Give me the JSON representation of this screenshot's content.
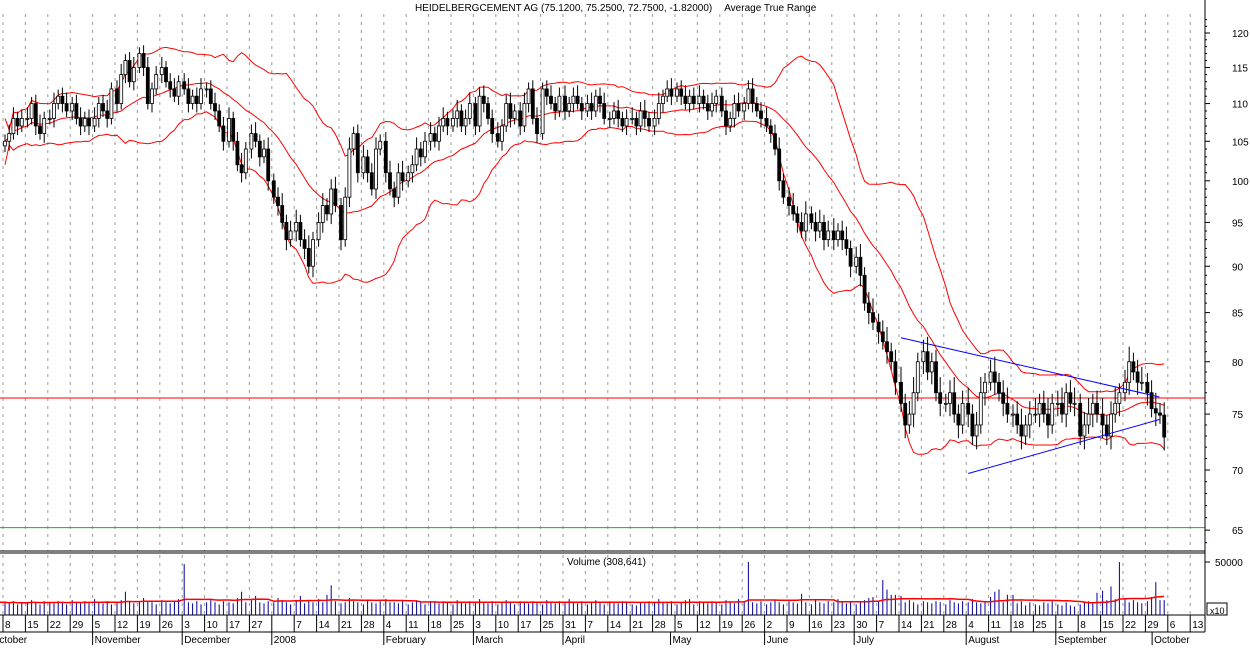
{
  "chart_data": {
    "type": "candlestick",
    "title": "HEIDELBERGCEMENT AG (75.1200, 75.2500, 72.7500, -1.82000)",
    "title_overlay": "Average True Range",
    "y_axis": {
      "scale": "log",
      "range": [
        63,
        123
      ],
      "ticks": [
        120,
        115,
        110,
        105,
        100,
        95,
        90,
        85,
        80,
        75,
        70,
        65
      ],
      "side": "right"
    },
    "grid": "vertical dashed at weekly ticks",
    "overlays": {
      "bollinger_bands": {
        "period": 20,
        "stddev": 2,
        "color": "#ff0000"
      },
      "horizontal_lines": [
        {
          "price": 76.5,
          "color": "#ff0000"
        },
        {
          "price": 65.2,
          "color": "#00c000"
        }
      ],
      "trendlines": [
        {
          "color": "#0000ff",
          "from": {
            "week": "Jul 14",
            "price": 82.4
          },
          "to": {
            "week": "Sep 29",
            "price": 76.6
          }
        },
        {
          "color": "#0000ff",
          "from": {
            "week": "Aug 4",
            "price": 69.7
          },
          "to": {
            "week": "Sep 29",
            "price": 74.5
          }
        }
      ]
    },
    "weekly_closes": [
      [
        105,
        106,
        108,
        107,
        108
      ],
      [
        108,
        110,
        107,
        106,
        108
      ],
      [
        108,
        110,
        111,
        110,
        109
      ],
      [
        110,
        108,
        107,
        108,
        107
      ],
      [
        108,
        110,
        109,
        108,
        112
      ],
      [
        110,
        114,
        116,
        113,
        115
      ],
      [
        117,
        115,
        110,
        112,
        114
      ],
      [
        115,
        113,
        112,
        111,
        113
      ],
      [
        112,
        110,
        111,
        110,
        112
      ],
      [
        112,
        110,
        109,
        107,
        105
      ],
      [
        108,
        105,
        102,
        101,
        104
      ],
      [
        106,
        105,
        103,
        104,
        100
      ],
      [
        98,
        97,
        95,
        93,
        94
      ],
      [
        95,
        93,
        92,
        90,
        93
      ],
      [
        95,
        97,
        96,
        99,
        97
      ],
      [
        93,
        98,
        104,
        106,
        101
      ],
      [
        103,
        101,
        99,
        104,
        105
      ],
      [
        101,
        99,
        98,
        101,
        100
      ],
      [
        101,
        102,
        104,
        103,
        105
      ],
      [
        106,
        105,
        107,
        108,
        107
      ],
      [
        108,
        109,
        107,
        108,
        110
      ],
      [
        107,
        111,
        110,
        108,
        106
      ],
      [
        105,
        107,
        110,
        108,
        109
      ],
      [
        107,
        110,
        112,
        108,
        106
      ],
      [
        112,
        111,
        110,
        109,
        111
      ],
      [
        109,
        110,
        111,
        110,
        109
      ],
      [
        110,
        109,
        111,
        110,
        108
      ],
      [
        108,
        109,
        108,
        107,
        108
      ],
      [
        108,
        107,
        109,
        108,
        107
      ],
      [
        108,
        110,
        111,
        112,
        111
      ],
      [
        112,
        111,
        110,
        111,
        110
      ],
      [
        111,
        110,
        109,
        110,
        111
      ],
      [
        109,
        107,
        108,
        110,
        109
      ],
      [
        110,
        112,
        110,
        109,
        108
      ],
      [
        107,
        106,
        104,
        100,
        98
      ],
      [
        97,
        96,
        95,
        94,
        96
      ],
      [
        95,
        94,
        95,
        93,
        94
      ],
      [
        93,
        94,
        93,
        92,
        90
      ],
      [
        91,
        89,
        86,
        85,
        84
      ],
      [
        83,
        82,
        81,
        80,
        78
      ],
      [
        76,
        74,
        75,
        77,
        80
      ],
      [
        81,
        79,
        80,
        77,
        76
      ],
      [
        76,
        77,
        75,
        74,
        76
      ],
      [
        75,
        73,
        74,
        77,
        78
      ],
      [
        79,
        78,
        77,
        76,
        75
      ],
      [
        75,
        74,
        73,
        74,
        75
      ],
      [
        75,
        76,
        75,
        74,
        76
      ],
      [
        76,
        75,
        77,
        76,
        76
      ],
      [
        73,
        74,
        75,
        76,
        75
      ],
      [
        74,
        73,
        75,
        76,
        77
      ],
      [
        78,
        80,
        79,
        78,
        78
      ],
      [
        77,
        75.5,
        75.1,
        74.9,
        72.9
      ]
    ],
    "volume": {
      "label": "Volume (308,641)",
      "scale_tick": "50000",
      "multiplier_label": "x10",
      "ma_color": "#ff0000",
      "bar_color": "#0000a0",
      "values_thousands": [
        12,
        11,
        13,
        10,
        12,
        11,
        14,
        12,
        10,
        13,
        12,
        11,
        13,
        12,
        10,
        14,
        12,
        11,
        13,
        12,
        15,
        12,
        11,
        13,
        10,
        12,
        14,
        22,
        13,
        11,
        12,
        16,
        13,
        12,
        10,
        14,
        12,
        11,
        13,
        15,
        48,
        12,
        11,
        13,
        10,
        12,
        14,
        12,
        10,
        13,
        12,
        11,
        16,
        22,
        12,
        14,
        18,
        12,
        11,
        13,
        12,
        16,
        13,
        12,
        10,
        14,
        18,
        11,
        13,
        12,
        15,
        12,
        19,
        28,
        13,
        11,
        12,
        16,
        13,
        12,
        10,
        14,
        12,
        11,
        13,
        15,
        12,
        12,
        11,
        13,
        10,
        12,
        14,
        12,
        10,
        13,
        12,
        11,
        13,
        12,
        10,
        14,
        12,
        11,
        13,
        12,
        15,
        12,
        11,
        13,
        10,
        12,
        14,
        12,
        10,
        13,
        12,
        11,
        13,
        12,
        10,
        14,
        12,
        11,
        13,
        12,
        15,
        12,
        11,
        13,
        10,
        12,
        14,
        12,
        10,
        13,
        12,
        11,
        13,
        12,
        10,
        9,
        12,
        11,
        13,
        12,
        15,
        12,
        11,
        13,
        10,
        12,
        14,
        15,
        10,
        13,
        12,
        11,
        13,
        12,
        10,
        14,
        12,
        11,
        15,
        13,
        50,
        12,
        11,
        13,
        10,
        12,
        14,
        12,
        10,
        13,
        12,
        11,
        20,
        12,
        10,
        14,
        12,
        11,
        13,
        12,
        15,
        12,
        11,
        13,
        10,
        12,
        14,
        16,
        17,
        13,
        33,
        24,
        19,
        19,
        18,
        12,
        14,
        12,
        10,
        13,
        12,
        11,
        13,
        12,
        10,
        14,
        12,
        11,
        13,
        12,
        15,
        12,
        11,
        13,
        17,
        22,
        24,
        12,
        19,
        19,
        11,
        13,
        9,
        12,
        10,
        9,
        12,
        11,
        13,
        10,
        9,
        12,
        9,
        8,
        10,
        12,
        13,
        12,
        21,
        23,
        14,
        27,
        15,
        50,
        16,
        12,
        14,
        12,
        11,
        13,
        17,
        31,
        14,
        14
      ]
    },
    "x_axis": {
      "week_ticks": [
        "8",
        "15",
        "22",
        "29",
        "5",
        "12",
        "19",
        "26",
        "3",
        "10",
        "17",
        "27",
        "",
        "7",
        "14",
        "21",
        "28",
        "4",
        "11",
        "18",
        "25",
        "3",
        "10",
        "17",
        "25",
        "31",
        "7",
        "14",
        "21",
        "28",
        "5",
        "12",
        "19",
        "26",
        "2",
        "9",
        "16",
        "23",
        "30",
        "7",
        "14",
        "21",
        "28",
        "4",
        "11",
        "18",
        "25",
        "1",
        "8",
        "15",
        "22",
        "29",
        "6",
        "13"
      ],
      "months": [
        {
          "label": "October",
          "week": -0.6
        },
        {
          "label": "November",
          "week": 4
        },
        {
          "label": "December",
          "week": 8
        },
        {
          "label": "2008",
          "week": 12
        },
        {
          "label": "February",
          "week": 17
        },
        {
          "label": "March",
          "week": 21
        },
        {
          "label": "April",
          "week": 25
        },
        {
          "label": "May",
          "week": 29.8
        },
        {
          "label": "June",
          "week": 34
        },
        {
          "label": "July",
          "week": 38
        },
        {
          "label": "August",
          "week": 43
        },
        {
          "label": "September",
          "week": 47
        },
        {
          "label": "October",
          "week": 51.3
        }
      ]
    }
  }
}
